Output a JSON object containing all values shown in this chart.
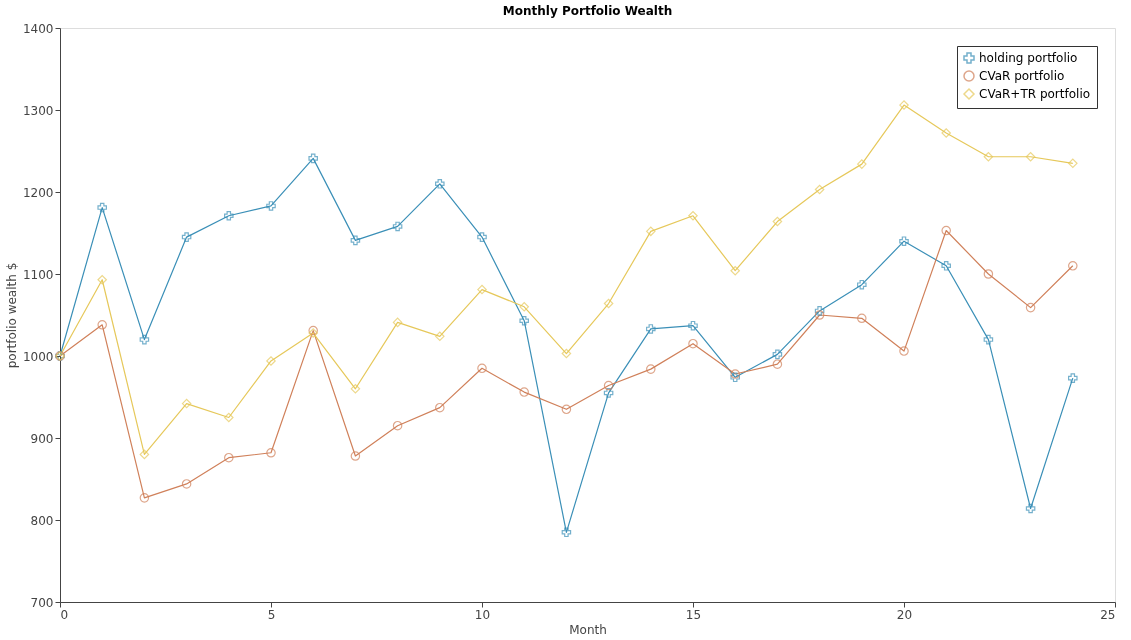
{
  "chart_data": {
    "type": "line",
    "title": "Monthly Portfolio Wealth",
    "xlabel": "Month",
    "ylabel": "portfolio wealth $",
    "x": [
      0,
      1,
      2,
      3,
      4,
      5,
      6,
      7,
      8,
      9,
      10,
      11,
      12,
      13,
      14,
      15,
      16,
      17,
      18,
      19,
      20,
      21,
      22,
      23,
      24
    ],
    "series": [
      {
        "name": "holding portfolio",
        "color": "#3a8fb7",
        "marker": "cross",
        "values": [
          1000,
          1181,
          1020,
          1145,
          1171,
          1183,
          1241,
          1141,
          1158,
          1210,
          1145,
          1043,
          785,
          955,
          1033,
          1037,
          974,
          1002,
          1055,
          1087,
          1140,
          1110,
          1020,
          814,
          973
        ]
      },
      {
        "name": "CVaR portfolio",
        "color": "#d0805a",
        "marker": "circle",
        "values": [
          1000,
          1038,
          827,
          844,
          876,
          882,
          1031,
          878,
          915,
          937,
          985,
          956,
          935,
          964,
          984,
          1015,
          978,
          990,
          1050,
          1046,
          1006,
          1153,
          1100,
          1059,
          1110
        ]
      },
      {
        "name": "CVaR+TR portfolio",
        "color": "#e6c85a",
        "marker": "diamond",
        "values": [
          1000,
          1093,
          880,
          942,
          925,
          994,
          1028,
          960,
          1041,
          1024,
          1081,
          1060,
          1003,
          1064,
          1152,
          1171,
          1104,
          1164,
          1203,
          1234,
          1306,
          1272,
          1243,
          1243,
          1235
        ]
      }
    ],
    "xlim": [
      0,
      25
    ],
    "xticks": [
      0,
      5,
      10,
      15,
      20,
      25
    ],
    "ylim": [
      700,
      1400
    ],
    "yticks": [
      700,
      800,
      900,
      1000,
      1100,
      1200,
      1300,
      1400
    ],
    "grid": false,
    "legend": "top right",
    "line_style": "solid"
  }
}
